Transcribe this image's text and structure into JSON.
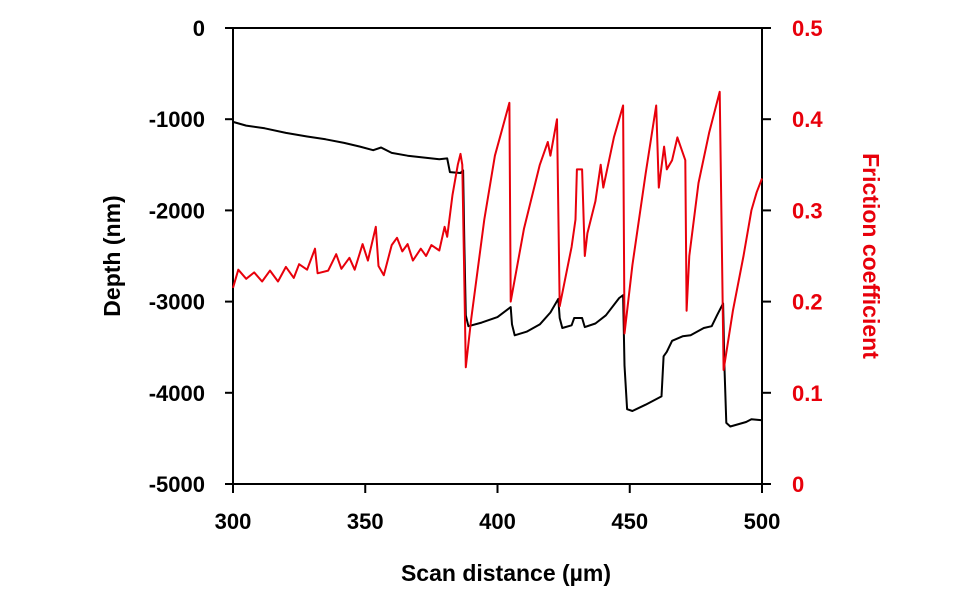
{
  "chart_data": {
    "type": "line",
    "title": "",
    "xlabel": "Scan distance (µm)",
    "ylabel": "Depth (nm)",
    "y2label": "Friction coefficient",
    "xlim": [
      300,
      500
    ],
    "ylim": [
      -5000,
      0
    ],
    "y2lim": [
      0,
      0.5
    ],
    "grid": false,
    "legend": "none",
    "x_ticks": [
      "300",
      "350",
      "400",
      "450",
      "500"
    ],
    "y_ticks": [
      "0",
      "-1000",
      "-2000",
      "-3000",
      "-4000",
      "-5000"
    ],
    "y2_ticks": [
      "0.5",
      "0.4",
      "0.3",
      "0.2",
      "0.1",
      "0"
    ],
    "colors": {
      "depth": "#000000",
      "friction": "#e8000b"
    },
    "series": [
      {
        "name": "Depth",
        "axis": "left",
        "color": "#000000",
        "points": [
          [
            300,
            -1030
          ],
          [
            305,
            -1070
          ],
          [
            312,
            -1100
          ],
          [
            320,
            -1150
          ],
          [
            328,
            -1190
          ],
          [
            335,
            -1220
          ],
          [
            342,
            -1260
          ],
          [
            348,
            -1300
          ],
          [
            353,
            -1340
          ],
          [
            356,
            -1310
          ],
          [
            360,
            -1370
          ],
          [
            366,
            -1400
          ],
          [
            372,
            -1420
          ],
          [
            378,
            -1440
          ],
          [
            381,
            -1430
          ],
          [
            382,
            -1580
          ],
          [
            386,
            -1590
          ],
          [
            387,
            -1560
          ],
          [
            387.5,
            -2400
          ],
          [
            388,
            -3150
          ],
          [
            389,
            -3270
          ],
          [
            394,
            -3230
          ],
          [
            400,
            -3170
          ],
          [
            405,
            -3060
          ],
          [
            405.5,
            -3250
          ],
          [
            406.5,
            -3370
          ],
          [
            411,
            -3330
          ],
          [
            416,
            -3250
          ],
          [
            420,
            -3120
          ],
          [
            423,
            -2970
          ],
          [
            423.5,
            -3180
          ],
          [
            424.5,
            -3290
          ],
          [
            428,
            -3260
          ],
          [
            429,
            -3180
          ],
          [
            432,
            -3180
          ],
          [
            433,
            -3280
          ],
          [
            437,
            -3240
          ],
          [
            441,
            -3150
          ],
          [
            446,
            -2960
          ],
          [
            447.5,
            -2930
          ],
          [
            448,
            -3700
          ],
          [
            449,
            -4180
          ],
          [
            451,
            -4200
          ],
          [
            456,
            -4130
          ],
          [
            462,
            -4040
          ],
          [
            462.8,
            -3600
          ],
          [
            464,
            -3550
          ],
          [
            466,
            -3430
          ],
          [
            470,
            -3380
          ],
          [
            473,
            -3370
          ],
          [
            478,
            -3290
          ],
          [
            481,
            -3270
          ],
          [
            483,
            -3150
          ],
          [
            485.3,
            -3020
          ],
          [
            485.8,
            -3700
          ],
          [
            486.5,
            -4330
          ],
          [
            488,
            -4370
          ],
          [
            494,
            -4320
          ],
          [
            496,
            -4290
          ],
          [
            500,
            -4300
          ]
        ]
      },
      {
        "name": "Friction coefficient",
        "axis": "right",
        "color": "#e8000b",
        "points": [
          [
            300,
            0.215
          ],
          [
            302,
            0.235
          ],
          [
            305,
            0.225
          ],
          [
            308,
            0.232
          ],
          [
            311,
            0.222
          ],
          [
            314,
            0.234
          ],
          [
            317,
            0.222
          ],
          [
            320,
            0.238
          ],
          [
            323,
            0.226
          ],
          [
            325,
            0.241
          ],
          [
            328,
            0.235
          ],
          [
            331,
            0.258
          ],
          [
            332,
            0.231
          ],
          [
            336,
            0.234
          ],
          [
            339,
            0.252
          ],
          [
            341,
            0.236
          ],
          [
            344,
            0.248
          ],
          [
            346,
            0.235
          ],
          [
            349,
            0.263
          ],
          [
            351,
            0.245
          ],
          [
            354,
            0.282
          ],
          [
            355,
            0.239
          ],
          [
            357,
            0.229
          ],
          [
            360,
            0.262
          ],
          [
            362,
            0.27
          ],
          [
            364,
            0.255
          ],
          [
            366,
            0.263
          ],
          [
            368,
            0.245
          ],
          [
            371,
            0.258
          ],
          [
            373,
            0.25
          ],
          [
            375,
            0.262
          ],
          [
            378,
            0.256
          ],
          [
            380,
            0.282
          ],
          [
            381,
            0.271
          ],
          [
            383,
            0.317
          ],
          [
            385,
            0.35
          ],
          [
            386,
            0.362
          ],
          [
            386.7,
            0.35
          ],
          [
            387.3,
            0.25
          ],
          [
            388,
            0.128
          ],
          [
            390,
            0.18
          ],
          [
            395,
            0.29
          ],
          [
            399,
            0.36
          ],
          [
            404.5,
            0.418
          ],
          [
            405,
            0.2
          ],
          [
            410,
            0.28
          ],
          [
            416,
            0.35
          ],
          [
            419,
            0.375
          ],
          [
            420,
            0.36
          ],
          [
            422.5,
            0.4
          ],
          [
            423.5,
            0.195
          ],
          [
            428,
            0.26
          ],
          [
            429.5,
            0.29
          ],
          [
            430,
            0.345
          ],
          [
            432,
            0.345
          ],
          [
            433,
            0.25
          ],
          [
            434,
            0.275
          ],
          [
            437,
            0.31
          ],
          [
            439,
            0.35
          ],
          [
            440,
            0.325
          ],
          [
            444,
            0.38
          ],
          [
            447.5,
            0.415
          ],
          [
            448,
            0.165
          ],
          [
            451,
            0.24
          ],
          [
            456,
            0.34
          ],
          [
            460,
            0.415
          ],
          [
            461,
            0.325
          ],
          [
            463,
            0.37
          ],
          [
            464,
            0.345
          ],
          [
            466,
            0.355
          ],
          [
            468,
            0.38
          ],
          [
            471,
            0.355
          ],
          [
            471.5,
            0.19
          ],
          [
            472.5,
            0.25
          ],
          [
            476,
            0.33
          ],
          [
            480,
            0.385
          ],
          [
            484,
            0.43
          ],
          [
            485.5,
            0.125
          ],
          [
            489,
            0.19
          ],
          [
            493,
            0.25
          ],
          [
            496,
            0.3
          ],
          [
            498,
            0.32
          ],
          [
            500,
            0.335
          ]
        ]
      }
    ]
  }
}
